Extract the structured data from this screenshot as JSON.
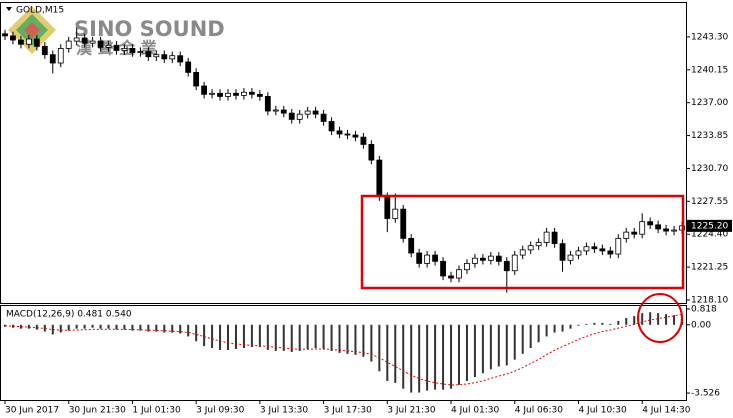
{
  "chart_data": [
    {
      "type": "candlestick",
      "title": "GOLD,M15",
      "annotations": [
        "SINO SOUND",
        "漢 聲 金 業"
      ],
      "categories": [
        "30 Jun 2017",
        null,
        null,
        null,
        null,
        null,
        null,
        null,
        "30 Jun 21:30",
        null,
        null,
        null,
        null,
        null,
        null,
        null,
        "1 Jul 01:30",
        null,
        null,
        null,
        null,
        null,
        null,
        null,
        "3 Jul 09:30",
        null,
        null,
        null,
        null,
        null,
        null,
        null,
        "3 Jul 13:30",
        null,
        null,
        null,
        null,
        null,
        null,
        null,
        "3 Jul 17:30",
        null,
        null,
        null,
        null,
        null,
        null,
        null,
        "3 Jul 21:30",
        null,
        null,
        null,
        null,
        null,
        null,
        null,
        "4 Jul 01:30",
        null,
        null,
        null,
        null,
        null,
        null,
        null,
        "4 Jul 06:30",
        null,
        null,
        null,
        null,
        null,
        null,
        null,
        "4 Jul 10:30",
        null,
        null,
        null,
        null,
        null,
        null,
        null,
        "4 Jul 14:30",
        null,
        null,
        null,
        null,
        null
      ],
      "open": [
        1243.6,
        1243.4,
        1243.0,
        1242.6,
        1243.1,
        1242.4,
        1241.6,
        1240.8,
        1242.2,
        1242.9,
        1243.2,
        1242.7,
        1242.9,
        1242.3,
        1242.5,
        1242.0,
        1242.2,
        1241.8,
        1241.9,
        1241.4,
        1241.6,
        1241.2,
        1241.5,
        1240.9,
        1239.9,
        1238.6,
        1237.8,
        1237.9,
        1237.6,
        1237.9,
        1237.7,
        1238.0,
        1237.8,
        1237.6,
        1236.2,
        1236.3,
        1236.0,
        1235.4,
        1235.9,
        1236.2,
        1235.9,
        1235.2,
        1234.3,
        1234.0,
        1233.9,
        1233.7,
        1233.0,
        1231.5,
        1228.0,
        1225.9,
        1226.8,
        1224.0,
        1222.6,
        1221.6,
        1222.4,
        1221.8,
        1220.4,
        1220.2,
        1221.0,
        1221.6,
        1222.1,
        1221.9,
        1222.3,
        1221.8,
        1220.9,
        1222.4,
        1222.9,
        1223.3,
        1223.6,
        1224.6,
        1223.5,
        1221.9,
        1222.4,
        1222.8,
        1223.2,
        1223.0,
        1222.8,
        1222.5,
        1224.0,
        1224.6,
        1224.4,
        1225.6,
        1225.3,
        1224.9,
        1224.7,
        1224.8
      ],
      "high": [
        1244.0,
        1243.8,
        1243.4,
        1243.5,
        1243.5,
        1242.8,
        1242.0,
        1242.6,
        1243.3,
        1244.2,
        1243.6,
        1243.3,
        1243.3,
        1242.9,
        1242.9,
        1242.6,
        1242.6,
        1242.3,
        1242.3,
        1242.0,
        1242.0,
        1241.9,
        1241.9,
        1241.3,
        1240.3,
        1239.0,
        1238.3,
        1238.3,
        1238.3,
        1238.3,
        1238.4,
        1238.4,
        1238.2,
        1238.0,
        1236.7,
        1236.7,
        1236.4,
        1236.3,
        1236.6,
        1236.6,
        1236.3,
        1235.6,
        1234.7,
        1234.4,
        1234.3,
        1234.1,
        1233.4,
        1231.9,
        1228.4,
        1228.3,
        1227.2,
        1224.4,
        1223.0,
        1222.8,
        1222.8,
        1222.2,
        1220.8,
        1221.4,
        1222.0,
        1222.5,
        1222.5,
        1222.7,
        1222.7,
        1222.2,
        1222.8,
        1223.3,
        1223.7,
        1224.0,
        1225.0,
        1225.0,
        1223.9,
        1222.8,
        1223.2,
        1223.6,
        1223.6,
        1223.4,
        1223.2,
        1224.4,
        1225.0,
        1225.0,
        1226.4,
        1226.0,
        1225.7,
        1225.3,
        1225.2,
        1225.6
      ],
      "low": [
        1243.0,
        1242.6,
        1242.2,
        1242.2,
        1242.0,
        1241.2,
        1239.8,
        1240.4,
        1241.8,
        1242.5,
        1242.3,
        1242.3,
        1241.9,
        1241.9,
        1241.6,
        1241.6,
        1241.4,
        1241.4,
        1241.0,
        1241.0,
        1240.8,
        1240.8,
        1240.5,
        1239.5,
        1238.2,
        1237.4,
        1237.4,
        1237.2,
        1237.2,
        1237.3,
        1237.3,
        1237.4,
        1237.2,
        1235.8,
        1235.8,
        1235.6,
        1235.0,
        1235.0,
        1235.5,
        1235.5,
        1234.8,
        1233.9,
        1233.6,
        1233.5,
        1233.3,
        1232.6,
        1231.1,
        1227.6,
        1224.6,
        1225.5,
        1223.6,
        1222.2,
        1221.2,
        1221.2,
        1221.4,
        1220.0,
        1219.8,
        1219.8,
        1220.6,
        1221.2,
        1221.5,
        1221.5,
        1221.4,
        1218.8,
        1220.5,
        1222.0,
        1222.5,
        1222.9,
        1223.2,
        1223.1,
        1220.8,
        1221.5,
        1222.0,
        1222.4,
        1222.6,
        1222.4,
        1222.1,
        1222.1,
        1223.6,
        1224.0,
        1224.0,
        1224.9,
        1224.5,
        1224.3,
        1224.3,
        1224.4
      ],
      "close": [
        1243.4,
        1243.0,
        1242.6,
        1243.1,
        1242.4,
        1241.6,
        1240.8,
        1242.2,
        1242.9,
        1243.2,
        1242.7,
        1242.9,
        1242.3,
        1242.5,
        1242.0,
        1242.2,
        1241.8,
        1241.9,
        1241.4,
        1241.6,
        1241.2,
        1241.5,
        1240.9,
        1239.9,
        1238.6,
        1237.8,
        1237.9,
        1237.6,
        1237.9,
        1237.7,
        1238.0,
        1237.8,
        1237.6,
        1236.2,
        1236.3,
        1236.0,
        1235.4,
        1235.9,
        1236.2,
        1235.9,
        1235.2,
        1234.3,
        1234.0,
        1233.9,
        1233.7,
        1233.0,
        1231.5,
        1228.0,
        1225.9,
        1226.8,
        1224.0,
        1222.6,
        1221.6,
        1222.4,
        1221.8,
        1220.4,
        1220.2,
        1221.0,
        1221.6,
        1222.1,
        1221.9,
        1222.3,
        1221.8,
        1220.9,
        1222.4,
        1222.9,
        1223.3,
        1223.6,
        1224.6,
        1223.5,
        1221.9,
        1222.4,
        1222.8,
        1223.2,
        1223.0,
        1222.8,
        1222.5,
        1224.0,
        1224.6,
        1224.4,
        1225.6,
        1225.3,
        1224.9,
        1224.7,
        1224.8,
        1225.2
      ],
      "up_color": "#ffffff",
      "down_color": "#000000",
      "edge_color": "#000000",
      "ylim": [
        1217.81,
        1246.55
      ],
      "yticks": [
        {
          "value": 1218.1,
          "label": "1218.10"
        },
        {
          "value": 1221.25,
          "label": "1221.25"
        },
        {
          "value": 1224.4,
          "label": "1224.40"
        },
        {
          "value": 1227.55,
          "label": "1227.55"
        },
        {
          "value": 1230.7,
          "label": "1230.70"
        },
        {
          "value": 1233.85,
          "label": "1233.85"
        },
        {
          "value": 1237,
          "label": "1237.00"
        },
        {
          "value": 1240.15,
          "label": "1240.15"
        },
        {
          "value": 1243.3,
          "label": "1243.30"
        }
      ],
      "last_price": {
        "value": 1225.2,
        "label": "1225.20"
      }
    },
    {
      "type": "macd",
      "title": "MACD(12,26,9) 0.481 0.540",
      "ylim": [
        -3.884,
        0.971
      ],
      "yticks": [
        0.818,
        {
          "value": 0,
          "label": "0.00"
        },
        -3.526
      ],
      "series": [
        {
          "type": "bar",
          "color": "#333333",
          "values": [
            -0.1,
            -0.15,
            -0.2,
            -0.2,
            -0.25,
            -0.35,
            -0.5,
            -0.4,
            -0.3,
            -0.2,
            -0.2,
            -0.15,
            -0.2,
            -0.2,
            -0.25,
            -0.25,
            -0.3,
            -0.3,
            -0.35,
            -0.35,
            -0.4,
            -0.4,
            -0.45,
            -0.6,
            -0.85,
            -1.1,
            -1.2,
            -1.3,
            -1.3,
            -1.25,
            -1.2,
            -1.15,
            -1.15,
            -1.3,
            -1.35,
            -1.35,
            -1.4,
            -1.35,
            -1.25,
            -1.2,
            -1.25,
            -1.35,
            -1.45,
            -1.5,
            -1.55,
            -1.65,
            -1.9,
            -2.4,
            -2.9,
            -3.0,
            -3.3,
            -3.5,
            -3.5,
            -3.4,
            -3.35,
            -3.35,
            -3.3,
            -3.1,
            -2.9,
            -2.7,
            -2.5,
            -2.3,
            -2.15,
            -2.1,
            -1.8,
            -1.5,
            -1.2,
            -0.9,
            -0.6,
            -0.4,
            -0.35,
            -0.2,
            -0.05,
            0.05,
            0.1,
            0.1,
            0.05,
            0.2,
            0.35,
            0.45,
            0.6,
            0.65,
            0.6,
            0.55,
            0.5,
            0.481
          ]
        },
        {
          "type": "line",
          "color": "#e00000",
          "values": [
            -0.05,
            -0.07,
            -0.1,
            -0.12,
            -0.15,
            -0.19,
            -0.25,
            -0.28,
            -0.28,
            -0.27,
            -0.26,
            -0.24,
            -0.23,
            -0.23,
            -0.23,
            -0.24,
            -0.25,
            -0.26,
            -0.28,
            -0.29,
            -0.31,
            -0.33,
            -0.35,
            -0.4,
            -0.49,
            -0.61,
            -0.73,
            -0.84,
            -0.93,
            -0.99,
            -1.03,
            -1.06,
            -1.08,
            -1.12,
            -1.16,
            -1.2,
            -1.24,
            -1.26,
            -1.26,
            -1.25,
            -1.25,
            -1.27,
            -1.31,
            -1.35,
            -1.39,
            -1.44,
            -1.53,
            -1.7,
            -1.94,
            -2.15,
            -2.38,
            -2.6,
            -2.78,
            -2.9,
            -2.99,
            -3.06,
            -3.11,
            -3.1,
            -3.06,
            -2.99,
            -2.89,
            -2.77,
            -2.65,
            -2.54,
            -2.39,
            -2.21,
            -2.0,
            -1.78,
            -1.54,
            -1.31,
            -1.12,
            -0.94,
            -0.76,
            -0.6,
            -0.46,
            -0.35,
            -0.27,
            -0.17,
            -0.07,
            0.03,
            0.15,
            0.25,
            0.32,
            0.39,
            0.46,
            0.54
          ]
        }
      ]
    }
  ]
}
